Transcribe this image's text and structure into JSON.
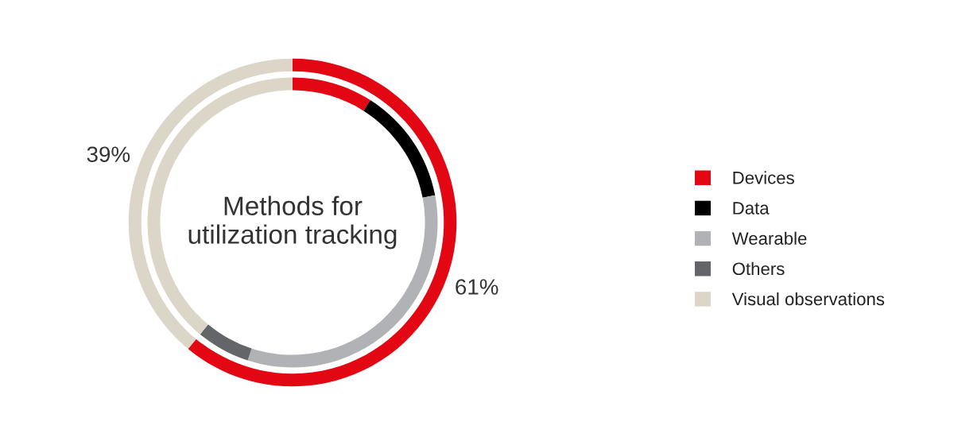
{
  "chart_data": {
    "type": "donut",
    "title": "Methods for\nutilization tracking",
    "legend": "right",
    "categories": [
      "Devices",
      "Data",
      "Wearable",
      "Others",
      "Visual observations"
    ],
    "series": [
      {
        "values": [
          61,
          null,
          null,
          null,
          39
        ],
        "colors": [
          "#e30613",
          null,
          null,
          null,
          "#dcd6c8"
        ],
        "value_labels": [
          "61%",
          null,
          null,
          null,
          "39%"
        ]
      },
      {
        "values": [
          9,
          13,
          33,
          6,
          39
        ],
        "colors": [
          "#e30613",
          "#000000",
          "#b1b2b5",
          "#636569",
          "#dcd6c8"
        ]
      }
    ]
  }
}
